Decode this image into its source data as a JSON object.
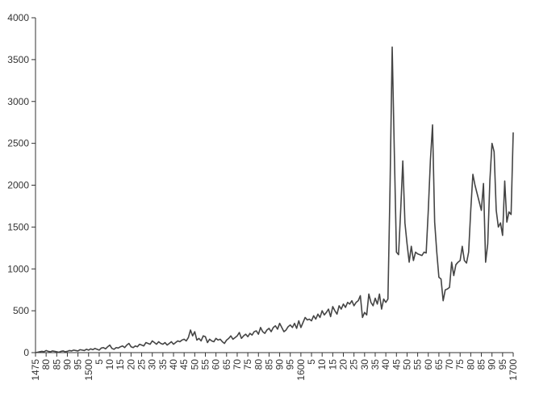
{
  "chart_data": {
    "type": "line",
    "x": [
      1475,
      1476,
      1477,
      1478,
      1479,
      1480,
      1481,
      1482,
      1483,
      1484,
      1485,
      1486,
      1487,
      1488,
      1489,
      1490,
      1491,
      1492,
      1493,
      1494,
      1495,
      1496,
      1497,
      1498,
      1499,
      1500,
      1501,
      1502,
      1503,
      1504,
      1505,
      1506,
      1507,
      1508,
      1509,
      1510,
      1511,
      1512,
      1513,
      1514,
      1515,
      1516,
      1517,
      1518,
      1519,
      1520,
      1521,
      1522,
      1523,
      1524,
      1525,
      1526,
      1527,
      1528,
      1529,
      1530,
      1531,
      1532,
      1533,
      1534,
      1535,
      1536,
      1537,
      1538,
      1539,
      1540,
      1541,
      1542,
      1543,
      1544,
      1545,
      1546,
      1547,
      1548,
      1549,
      1550,
      1551,
      1552,
      1553,
      1554,
      1555,
      1556,
      1557,
      1558,
      1559,
      1560,
      1561,
      1562,
      1563,
      1564,
      1565,
      1566,
      1567,
      1568,
      1569,
      1570,
      1571,
      1572,
      1573,
      1574,
      1575,
      1576,
      1577,
      1578,
      1579,
      1580,
      1581,
      1582,
      1583,
      1584,
      1585,
      1586,
      1587,
      1588,
      1589,
      1590,
      1591,
      1592,
      1593,
      1594,
      1595,
      1596,
      1597,
      1598,
      1599,
      1600,
      1601,
      1602,
      1603,
      1604,
      1605,
      1606,
      1607,
      1608,
      1609,
      1610,
      1611,
      1612,
      1613,
      1614,
      1615,
      1616,
      1617,
      1618,
      1619,
      1620,
      1621,
      1622,
      1623,
      1624,
      1625,
      1626,
      1627,
      1628,
      1629,
      1630,
      1631,
      1632,
      1633,
      1634,
      1635,
      1636,
      1637,
      1638,
      1639,
      1640,
      1641,
      1642,
      1643,
      1644,
      1645,
      1646,
      1647,
      1648,
      1649,
      1650,
      1651,
      1652,
      1653,
      1654,
      1655,
      1656,
      1657,
      1658,
      1659,
      1660,
      1661,
      1662,
      1663,
      1664,
      1665,
      1666,
      1667,
      1668,
      1669,
      1670,
      1671,
      1672,
      1673,
      1674,
      1675,
      1676,
      1677,
      1678,
      1679,
      1680,
      1681,
      1682,
      1683,
      1684,
      1685,
      1686,
      1687,
      1688,
      1689,
      1690,
      1691,
      1692,
      1693,
      1694,
      1695,
      1696,
      1697,
      1698,
      1699,
      1700
    ],
    "values": [
      0,
      5,
      10,
      15,
      10,
      25,
      15,
      10,
      20,
      15,
      10,
      5,
      15,
      20,
      10,
      15,
      25,
      20,
      30,
      25,
      20,
      35,
      30,
      25,
      40,
      30,
      45,
      35,
      50,
      40,
      30,
      55,
      60,
      45,
      70,
      90,
      50,
      40,
      60,
      55,
      70,
      80,
      60,
      90,
      110,
      70,
      60,
      80,
      70,
      100,
      90,
      80,
      120,
      110,
      100,
      140,
      120,
      100,
      130,
      110,
      100,
      120,
      90,
      110,
      130,
      100,
      120,
      140,
      130,
      150,
      160,
      140,
      180,
      270,
      200,
      250,
      150,
      170,
      140,
      200,
      190,
      120,
      160,
      140,
      130,
      170,
      150,
      160,
      130,
      110,
      150,
      170,
      200,
      160,
      180,
      200,
      240,
      170,
      200,
      220,
      190,
      230,
      210,
      250,
      260,
      220,
      300,
      250,
      230,
      270,
      290,
      250,
      300,
      320,
      280,
      350,
      300,
      250,
      270,
      310,
      330,
      300,
      350,
      290,
      380,
      300,
      360,
      420,
      390,
      400,
      380,
      440,
      400,
      460,
      420,
      500,
      450,
      480,
      520,
      430,
      550,
      500,
      460,
      560,
      520,
      580,
      540,
      600,
      580,
      620,
      560,
      600,
      620,
      680,
      420,
      480,
      450,
      700,
      600,
      560,
      650,
      580,
      700,
      520,
      640,
      600,
      640,
      2000,
      3650,
      2400,
      1200,
      1170,
      1700,
      2290,
      1550,
      1300,
      1080,
      1270,
      1100,
      1200,
      1180,
      1170,
      1160,
      1200,
      1190,
      1700,
      2300,
      2720,
      1560,
      1200,
      900,
      880,
      620,
      750,
      760,
      780,
      1080,
      920,
      1050,
      1080,
      1100,
      1270,
      1100,
      1070,
      1200,
      1700,
      2130,
      2000,
      1900,
      1800,
      1700,
      2020,
      1080,
      1300,
      2050,
      2500,
      2400,
      1700,
      1500,
      1550,
      1400,
      2050,
      1560,
      1680,
      1650,
      2630
    ],
    "color": "#444444",
    "xlim": [
      1475,
      1700
    ],
    "xticks": [
      1475,
      {
        "value": 1480,
        "label": "80"
      },
      {
        "value": 1485,
        "label": "85"
      },
      {
        "value": 1490,
        "label": "90"
      },
      {
        "value": 1495,
        "label": "95"
      },
      1500,
      {
        "value": 1505,
        "label": "5"
      },
      {
        "value": 1510,
        "label": "10"
      },
      {
        "value": 1515,
        "label": "15"
      },
      {
        "value": 1520,
        "label": "20"
      },
      {
        "value": 1525,
        "label": "25"
      },
      {
        "value": 1530,
        "label": "30"
      },
      {
        "value": 1535,
        "label": "35"
      },
      {
        "value": 1540,
        "label": "40"
      },
      {
        "value": 1545,
        "label": "45"
      },
      {
        "value": 1550,
        "label": "50"
      },
      {
        "value": 1555,
        "label": "55"
      },
      {
        "value": 1560,
        "label": "60"
      },
      {
        "value": 1565,
        "label": "65"
      },
      {
        "value": 1570,
        "label": "70"
      },
      {
        "value": 1575,
        "label": "75"
      },
      {
        "value": 1580,
        "label": "80"
      },
      {
        "value": 1585,
        "label": "85"
      },
      {
        "value": 1590,
        "label": "90"
      },
      {
        "value": 1595,
        "label": "95"
      },
      1600,
      {
        "value": 1605,
        "label": "5"
      },
      {
        "value": 1610,
        "label": "10"
      },
      {
        "value": 1615,
        "label": "15"
      },
      {
        "value": 1620,
        "label": "20"
      },
      {
        "value": 1625,
        "label": "25"
      },
      {
        "value": 1630,
        "label": "30"
      },
      {
        "value": 1635,
        "label": "35"
      },
      {
        "value": 1640,
        "label": "40"
      },
      {
        "value": 1645,
        "label": "45"
      },
      {
        "value": 1650,
        "label": "50"
      },
      {
        "value": 1655,
        "label": "55"
      },
      {
        "value": 1660,
        "label": "60"
      },
      {
        "value": 1665,
        "label": "65"
      },
      {
        "value": 1670,
        "label": "70"
      },
      {
        "value": 1675,
        "label": "75"
      },
      {
        "value": 1680,
        "label": "80"
      },
      {
        "value": 1685,
        "label": "85"
      },
      {
        "value": 1690,
        "label": "90"
      },
      {
        "value": 1695,
        "label": "95"
      },
      1700
    ],
    "ylim": [
      0,
      4000
    ],
    "yticks": [
      0,
      500,
      1000,
      1500,
      2000,
      2500,
      3000,
      3500,
      4000
    ],
    "grid": false
  }
}
